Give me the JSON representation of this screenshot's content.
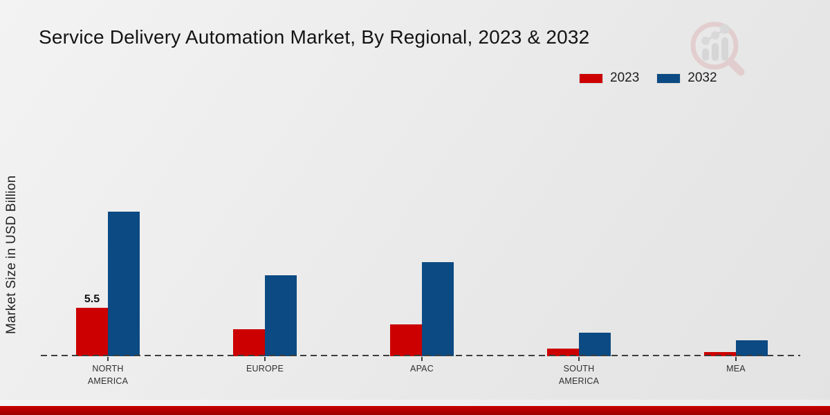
{
  "title": "Service Delivery Automation Market, By Regional, 2023 & 2032",
  "icons": {
    "watermark": "magnifier-bar-chart-logo"
  },
  "chart_data": {
    "type": "bar",
    "title": "Service Delivery Automation Market, By Regional, 2023 & 2032",
    "xlabel": "",
    "ylabel": "Market Size in USD Billion",
    "categories": [
      "NORTH AMERICA",
      "EUROPE",
      "APAC",
      "SOUTH AMERICA",
      "MEA"
    ],
    "series": [
      {
        "name": "2023",
        "color": "#cc0000",
        "values": [
          5.5,
          3.1,
          3.6,
          0.85,
          0.5
        ]
      },
      {
        "name": "2032",
        "color": "#0b4a82",
        "values": [
          16.5,
          9.2,
          10.7,
          2.65,
          1.85
        ]
      }
    ],
    "annotations": [
      {
        "series_index": 0,
        "category_index": 0,
        "text": "5.5"
      }
    ],
    "legend_position": "top-right",
    "legend_entries": [
      "2023",
      "2032"
    ],
    "grid": false,
    "baseline_style": "dashed",
    "ylim": [
      0,
      18
    ],
    "y_tick_labels_visible": false
  }
}
